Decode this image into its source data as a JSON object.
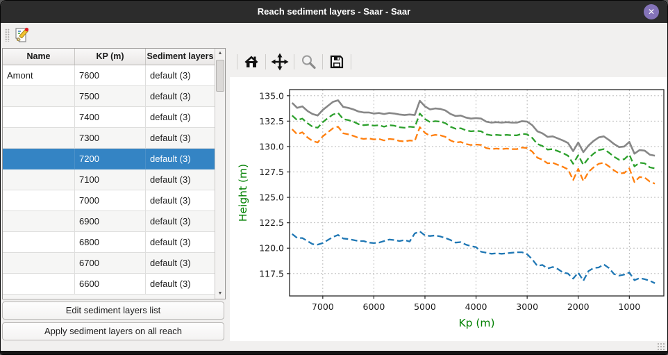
{
  "window": {
    "title": "Reach sediment layers - Saar - Saar",
    "close_glyph": "✕"
  },
  "toolbar": {
    "edit_tool": "edit-sediment-layers"
  },
  "table": {
    "headers": [
      "Name",
      "KP (m)",
      "Sediment layers"
    ],
    "selected_index": 4,
    "rows": [
      [
        "Amont",
        "7600",
        "default (3)"
      ],
      [
        "",
        "7500",
        "default (3)"
      ],
      [
        "",
        "7400",
        "default (3)"
      ],
      [
        "",
        "7300",
        "default (3)"
      ],
      [
        "",
        "7200",
        "default (3)"
      ],
      [
        "",
        "7100",
        "default (3)"
      ],
      [
        "",
        "7000",
        "default (3)"
      ],
      [
        "",
        "6900",
        "default (3)"
      ],
      [
        "",
        "6800",
        "default (3)"
      ],
      [
        "",
        "6700",
        "default (3)"
      ],
      [
        "",
        "6600",
        "default (3)"
      ]
    ],
    "scroll_up_glyph": "▲",
    "scroll_down_glyph": "▼"
  },
  "buttons": {
    "edit_list": "Edit sediment layers list",
    "apply_all": "Apply sediment layers on all reach"
  },
  "plot_toolbar": {
    "icons": [
      "home",
      "pan",
      "zoom",
      "save"
    ]
  },
  "chart_data": {
    "type": "line",
    "xlabel": "Kp (m)",
    "ylabel": "Height (m)",
    "axis_label_color": "#008000",
    "tick_color": "#1a1a1a",
    "grid": true,
    "x_reversed": true,
    "xlim": [
      7650,
      325
    ],
    "ylim": [
      115.3,
      135.6
    ],
    "x_ticks": [
      7000,
      6000,
      5000,
      4000,
      3000,
      2000,
      1000
    ],
    "y_ticks": [
      117.5,
      120.0,
      122.5,
      125.0,
      127.5,
      130.0,
      132.5,
      135.0
    ],
    "x": [
      7600,
      7500,
      7400,
      7300,
      7200,
      7100,
      7000,
      6900,
      6800,
      6700,
      6600,
      6500,
      6400,
      6300,
      6200,
      6100,
      6000,
      5900,
      5800,
      5700,
      5600,
      5500,
      5400,
      5300,
      5200,
      5100,
      5000,
      4900,
      4800,
      4700,
      4600,
      4500,
      4400,
      4300,
      4200,
      4100,
      4000,
      3900,
      3800,
      3700,
      3600,
      3500,
      3400,
      3300,
      3200,
      3100,
      3000,
      2900,
      2800,
      2700,
      2600,
      2500,
      2400,
      2300,
      2200,
      2100,
      2000,
      1900,
      1800,
      1700,
      1600,
      1500,
      1400,
      1300,
      1200,
      1100,
      1000,
      900,
      800,
      700,
      600,
      500
    ],
    "series": [
      {
        "name": "gray-solid",
        "color": "#878787",
        "style": "solid",
        "width": 2.6,
        "values": [
          134.3,
          133.8,
          133.95,
          133.5,
          133.2,
          133.05,
          133.6,
          134.0,
          134.4,
          134.55,
          133.9,
          133.8,
          133.65,
          133.45,
          133.35,
          133.35,
          133.25,
          133.3,
          133.2,
          133.3,
          133.25,
          133.15,
          133.1,
          133.15,
          133.1,
          134.5,
          133.95,
          133.65,
          133.75,
          133.7,
          133.55,
          133.2,
          133.0,
          133.05,
          132.85,
          132.75,
          132.8,
          132.75,
          132.45,
          132.35,
          132.4,
          132.35,
          132.4,
          132.35,
          132.35,
          132.5,
          132.45,
          132.1,
          131.5,
          131.3,
          130.95,
          131.0,
          130.8,
          130.6,
          130.35,
          129.55,
          130.4,
          129.45,
          130.1,
          130.55,
          130.9,
          131.0,
          130.65,
          130.25,
          129.95,
          130.0,
          130.45,
          129.3,
          129.65,
          129.6,
          129.2,
          129.1
        ]
      },
      {
        "name": "green-dashed",
        "color": "#2ca02c",
        "style": "dashed",
        "width": 2.3,
        "values": [
          133.05,
          132.6,
          132.75,
          132.3,
          131.95,
          131.85,
          132.4,
          132.8,
          133.15,
          133.3,
          132.7,
          132.6,
          132.45,
          132.2,
          132.1,
          132.15,
          132.05,
          132.1,
          131.95,
          132.1,
          132.05,
          131.9,
          131.85,
          131.95,
          131.9,
          133.25,
          132.7,
          132.4,
          132.5,
          132.45,
          132.3,
          131.95,
          131.75,
          131.8,
          131.6,
          131.5,
          131.55,
          131.5,
          131.2,
          131.1,
          131.15,
          131.1,
          131.15,
          131.1,
          131.1,
          131.25,
          131.2,
          130.85,
          130.25,
          130.05,
          129.7,
          129.75,
          129.55,
          129.35,
          129.1,
          128.3,
          129.15,
          128.2,
          128.85,
          129.3,
          129.65,
          129.75,
          129.4,
          129.0,
          128.7,
          128.75,
          129.2,
          128.05,
          128.4,
          128.35,
          127.95,
          127.85
        ]
      },
      {
        "name": "orange-dashed",
        "color": "#ff7f0e",
        "style": "dashed",
        "width": 2.3,
        "values": [
          131.7,
          131.2,
          131.4,
          130.9,
          130.55,
          130.4,
          131.0,
          131.4,
          131.8,
          131.95,
          131.3,
          131.2,
          131.05,
          130.85,
          130.75,
          130.8,
          130.7,
          130.75,
          130.6,
          130.75,
          130.7,
          130.55,
          130.5,
          130.6,
          130.55,
          131.9,
          131.35,
          131.05,
          131.15,
          131.1,
          130.95,
          130.6,
          130.4,
          130.45,
          130.25,
          130.15,
          130.2,
          130.15,
          129.85,
          129.75,
          129.8,
          129.75,
          129.8,
          129.75,
          129.75,
          129.9,
          129.85,
          129.5,
          128.9,
          128.7,
          128.35,
          128.4,
          128.2,
          128.0,
          127.75,
          126.7,
          127.8,
          126.6,
          127.5,
          127.95,
          128.3,
          128.4,
          128.05,
          127.65,
          127.35,
          127.4,
          127.85,
          126.5,
          127.0,
          126.95,
          126.55,
          126.35
        ]
      },
      {
        "name": "blue-dashed",
        "color": "#1f77b4",
        "style": "dashed",
        "width": 2.3,
        "values": [
          121.4,
          121.0,
          121.0,
          120.7,
          120.4,
          120.35,
          120.5,
          120.8,
          121.1,
          121.3,
          120.95,
          120.9,
          120.8,
          120.7,
          120.7,
          120.55,
          120.5,
          120.55,
          120.7,
          120.85,
          120.8,
          120.7,
          120.8,
          120.65,
          121.45,
          121.65,
          121.25,
          121.2,
          121.25,
          121.15,
          121.0,
          120.8,
          120.55,
          120.6,
          120.35,
          120.2,
          120.1,
          119.65,
          119.55,
          119.45,
          119.5,
          119.45,
          119.5,
          119.55,
          119.6,
          119.6,
          119.4,
          118.9,
          118.25,
          118.35,
          118.0,
          118.15,
          117.95,
          117.6,
          117.5,
          117.0,
          117.6,
          116.8,
          117.75,
          118.05,
          118.1,
          118.4,
          118.05,
          117.45,
          117.3,
          117.4,
          117.6,
          116.85,
          117.05,
          116.95,
          116.8,
          116.55
        ]
      }
    ]
  }
}
